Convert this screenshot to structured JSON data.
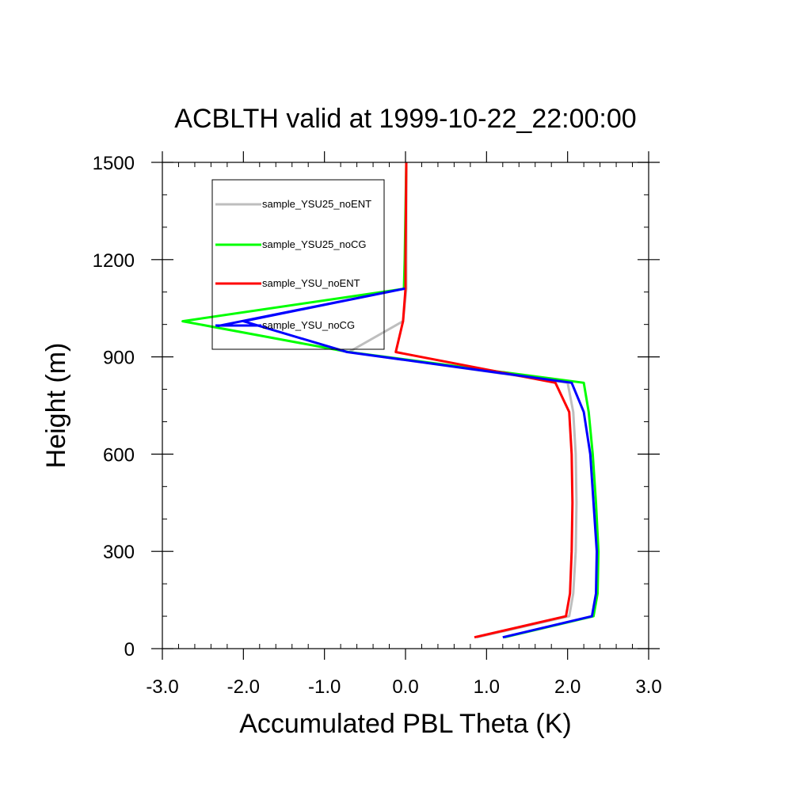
{
  "chart_data": {
    "type": "line",
    "title": "ACBLTH valid at 1999-10-22_22:00:00",
    "xlabel": "Accumulated PBL Theta (K)",
    "ylabel": "Height (m)",
    "xlim": [
      -3.0,
      3.0
    ],
    "ylim": [
      0,
      1500
    ],
    "x_ticks": [
      -3.0,
      -2.0,
      -1.0,
      0.0,
      1.0,
      2.0,
      3.0
    ],
    "x_tick_labels": [
      "-3.0",
      "-2.0",
      "-1.0",
      "0.0",
      "1.0",
      "2.0",
      "3.0"
    ],
    "x_minor_step": 0.2,
    "y_ticks": [
      0,
      300,
      600,
      900,
      1200,
      1500
    ],
    "y_tick_labels": [
      "0",
      "300",
      "600",
      "900",
      "1200",
      "1500"
    ],
    "y_minor_step": 100,
    "grid": false,
    "legend_position": "top-left",
    "series": [
      {
        "name": "sample_YSU25_noENT",
        "color": "#bebebe",
        "points": [
          [
            0.88,
            35
          ],
          [
            2.02,
            100
          ],
          [
            2.07,
            170
          ],
          [
            2.1,
            300
          ],
          [
            2.11,
            450
          ],
          [
            2.1,
            600
          ],
          [
            2.07,
            730
          ],
          [
            2.0,
            820
          ],
          [
            -0.7,
            915
          ],
          [
            -0.03,
            1010
          ],
          [
            0.01,
            1110
          ],
          [
            0.01,
            1200
          ],
          [
            0.01,
            1500
          ]
        ]
      },
      {
        "name": "sample_YSU25_noCG",
        "color": "#00ff00",
        "points": [
          [
            1.22,
            35
          ],
          [
            2.32,
            100
          ],
          [
            2.37,
            170
          ],
          [
            2.38,
            300
          ],
          [
            2.35,
            450
          ],
          [
            2.31,
            600
          ],
          [
            2.26,
            730
          ],
          [
            2.2,
            820
          ],
          [
            -0.7,
            915
          ],
          [
            -2.75,
            1010
          ],
          [
            -0.02,
            1110
          ],
          [
            -0.01,
            1200
          ],
          [
            0.01,
            1500
          ]
        ]
      },
      {
        "name": "sample_YSU_noENT",
        "color": "#ff0000",
        "points": [
          [
            0.85,
            35
          ],
          [
            1.98,
            100
          ],
          [
            2.03,
            170
          ],
          [
            2.05,
            300
          ],
          [
            2.06,
            450
          ],
          [
            2.05,
            600
          ],
          [
            2.02,
            730
          ],
          [
            1.85,
            820
          ],
          [
            -0.12,
            915
          ],
          [
            -0.03,
            1010
          ],
          [
            0.0,
            1110
          ],
          [
            0.0,
            1200
          ],
          [
            0.01,
            1500
          ]
        ]
      },
      {
        "name": "sample_YSU_noCG",
        "color": "#0000ff",
        "points": [
          [
            1.2,
            35
          ],
          [
            2.3,
            100
          ],
          [
            2.35,
            170
          ],
          [
            2.36,
            300
          ],
          [
            2.32,
            450
          ],
          [
            2.28,
            600
          ],
          [
            2.2,
            730
          ],
          [
            2.05,
            820
          ],
          [
            -0.72,
            915
          ],
          [
            -2.0,
            1010
          ],
          [
            -0.02,
            1110
          ]
        ]
      }
    ],
    "legend_frame_series_end": {
      "sample_YSU_noCG": [
        -2.32,
        995
      ]
    }
  }
}
